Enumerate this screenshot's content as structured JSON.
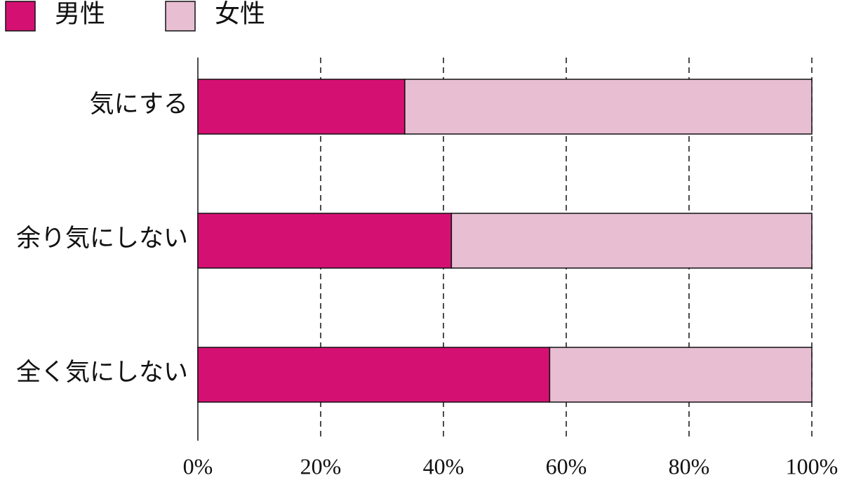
{
  "chart_data": {
    "type": "stacked-barh",
    "categories": [
      "気にする",
      "余り気にしない",
      "全く気にしない"
    ],
    "series": [
      {
        "name": "男性",
        "color": "#d41173",
        "values": [
          33.7,
          41.3,
          57.3
        ]
      },
      {
        "name": "女性",
        "color": "#e8bed2",
        "values": [
          66.3,
          58.7,
          42.7
        ]
      }
    ],
    "xlim": [
      0,
      100
    ],
    "xticks": [
      {
        "value": 0,
        "label": "0%"
      },
      {
        "value": 20,
        "label": "20%"
      },
      {
        "value": 40,
        "label": "40%"
      },
      {
        "value": 60,
        "label": "60%"
      },
      {
        "value": 80,
        "label": "80%"
      },
      {
        "value": 100,
        "label": "100%"
      }
    ],
    "grid": true,
    "legend": "top-left"
  }
}
